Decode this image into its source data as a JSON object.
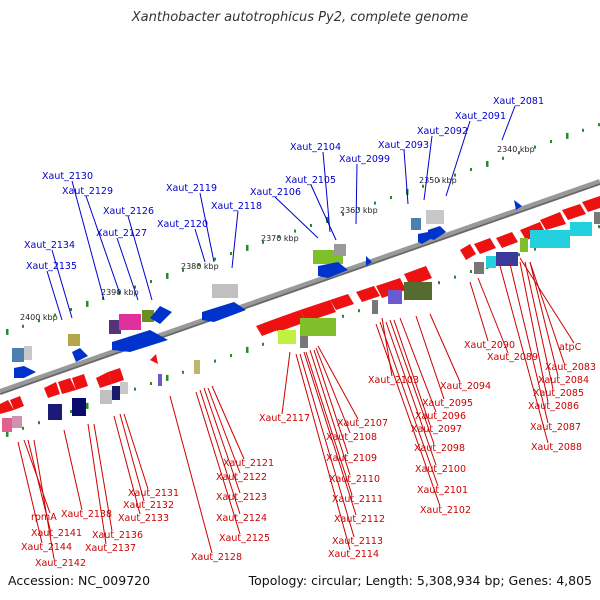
{
  "title": "Xanthobacter autotrophicus Py2, complete genome",
  "footer": {
    "accession": "Accession: NC_009720",
    "summary": "Topology: circular; Length: 5,308,934 bp; Genes: 4,805"
  },
  "colors": {
    "upper_label": "#0000cc",
    "lower_label": "#cc0000",
    "backbone": "#888888",
    "tick": "#2a8a2a"
  },
  "kbp_ticks": [
    "2340 kbp",
    "2350 kbp",
    "2360 kbp",
    "2370 kbp",
    "2380 kbp",
    "2390 kbp",
    "2400 kbp"
  ],
  "upper_labels": [
    "Xaut_2081",
    "Xaut_2091",
    "Xaut_2092",
    "Xaut_2093",
    "Xaut_2099",
    "Xaut_2104",
    "Xaut_2105",
    "Xaut_2106",
    "Xaut_2118",
    "Xaut_2119",
    "Xaut_2120",
    "Xaut_2126",
    "Xaut_2127",
    "Xaut_2129",
    "Xaut_2130",
    "Xaut_2134",
    "Xaut_2135"
  ],
  "lower_labels": [
    "Xaut_2090",
    "Xaut_2089",
    "atpC",
    "Xaut_2083",
    "Xaut_2084",
    "Xaut_2085",
    "Xaut_2086",
    "Xaut_2087",
    "Xaut_2088",
    "Xaut_2103",
    "Xaut_2094",
    "Xaut_2095",
    "Xaut_2096",
    "Xaut_2097",
    "Xaut_2098",
    "Xaut_2100",
    "Xaut_2101",
    "Xaut_2102",
    "Xaut_2117",
    "Xaut_2107",
    "Xaut_2108",
    "Xaut_2109",
    "Xaut_2110",
    "Xaut_2111",
    "Xaut_2112",
    "Xaut_2113",
    "Xaut_2114",
    "Xaut_2121",
    "Xaut_2122",
    "Xaut_2123",
    "Xaut_2124",
    "Xaut_2125",
    "Xaut_2128",
    "Xaut_2131",
    "Xaut_2132",
    "Xaut_2133",
    "Xaut_2138",
    "Xaut_2136",
    "Xaut_2137",
    "rpmA",
    "Xaut_2141",
    "Xaut_2144",
    "Xaut_2142"
  ]
}
